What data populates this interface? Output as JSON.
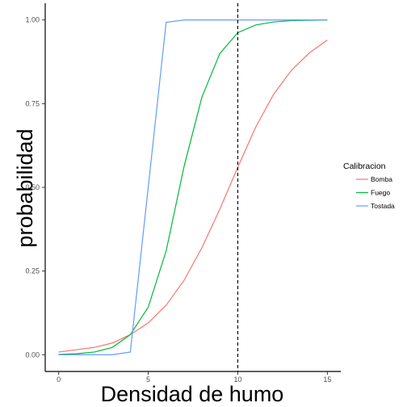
{
  "chart_data": {
    "type": "line",
    "xlabel": "Densidad de humo",
    "ylabel": "probabilidad",
    "xlim": [
      -0.75,
      15.75
    ],
    "ylim": [
      -0.05,
      1.05
    ],
    "x_ticks": [
      0,
      5,
      10,
      15
    ],
    "x_tick_labels": [
      "0",
      "5",
      "10",
      "15"
    ],
    "y_ticks": [
      0,
      0.25,
      0.5,
      0.75,
      1.0
    ],
    "y_tick_labels": [
      "0.00",
      "0.25",
      "0.50",
      "0.75",
      "1.00"
    ],
    "grid": false,
    "vline": {
      "x": 10,
      "style": "dashed",
      "color": "#000000"
    },
    "legend": {
      "title": "Calibracion",
      "placement": "right"
    },
    "x": [
      0,
      1,
      2,
      3,
      4,
      5,
      6,
      7,
      8,
      9,
      10,
      11,
      12,
      13,
      14,
      15
    ],
    "series": [
      {
        "name": "Bomba",
        "color": "#F8766D",
        "values": [
          0.008,
          0.015,
          0.022,
          0.035,
          0.06,
          0.095,
          0.148,
          0.222,
          0.32,
          0.435,
          0.56,
          0.68,
          0.778,
          0.85,
          0.902,
          0.94
        ]
      },
      {
        "name": "Fuego",
        "color": "#00BA38",
        "values": [
          0.001,
          0.003,
          0.008,
          0.022,
          0.06,
          0.142,
          0.31,
          0.562,
          0.77,
          0.9,
          0.962,
          0.985,
          0.994,
          0.998,
          0.999,
          1.0
        ]
      },
      {
        "name": "Tostada",
        "color": "#619CFF",
        "values": [
          0.0,
          0.0,
          0.0,
          0.0,
          0.008,
          0.5,
          0.993,
          1.0,
          1.0,
          1.0,
          1.0,
          1.0,
          1.0,
          1.0,
          1.0,
          1.0
        ]
      }
    ]
  }
}
